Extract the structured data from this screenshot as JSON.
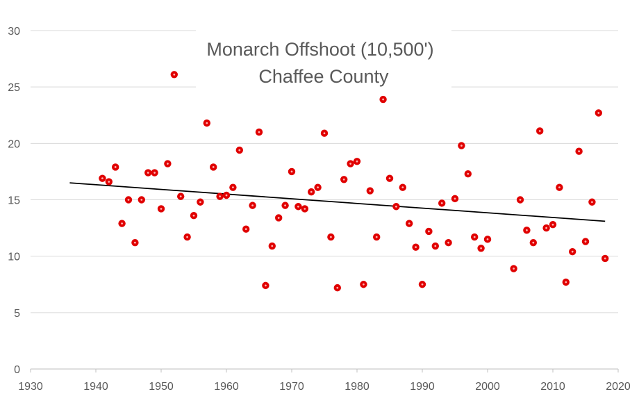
{
  "chart_data": {
    "type": "scatter",
    "title_lines": [
      "Monarch Offshoot (10,500')",
      "Chaffee County"
    ],
    "xlabel": "",
    "ylabel": "",
    "xlim": [
      1930,
      2020
    ],
    "ylim": [
      0,
      30
    ],
    "xticks": [
      1930,
      1940,
      1950,
      1960,
      1970,
      1980,
      1990,
      2000,
      2010,
      2020
    ],
    "yticks": [
      0,
      5,
      10,
      15,
      20,
      25,
      30
    ],
    "grid": "horizontal",
    "legend": "none",
    "point_color": "#e00000",
    "point_center_color": "#ffb0b0",
    "trend_color": "#000000",
    "trendline": {
      "x": [
        1936,
        2018
      ],
      "y": [
        16.5,
        13.1
      ]
    },
    "points": [
      {
        "x": 1941,
        "y": 16.9
      },
      {
        "x": 1942,
        "y": 16.6
      },
      {
        "x": 1943,
        "y": 17.9
      },
      {
        "x": 1944,
        "y": 12.9
      },
      {
        "x": 1945,
        "y": 15.0
      },
      {
        "x": 1946,
        "y": 11.2
      },
      {
        "x": 1947,
        "y": 15.0
      },
      {
        "x": 1948,
        "y": 17.4
      },
      {
        "x": 1949,
        "y": 17.4
      },
      {
        "x": 1950,
        "y": 14.2
      },
      {
        "x": 1951,
        "y": 18.2
      },
      {
        "x": 1952,
        "y": 26.1
      },
      {
        "x": 1953,
        "y": 15.3
      },
      {
        "x": 1954,
        "y": 11.7
      },
      {
        "x": 1955,
        "y": 13.6
      },
      {
        "x": 1956,
        "y": 14.8
      },
      {
        "x": 1957,
        "y": 21.8
      },
      {
        "x": 1958,
        "y": 17.9
      },
      {
        "x": 1959,
        "y": 15.3
      },
      {
        "x": 1960,
        "y": 15.4
      },
      {
        "x": 1961,
        "y": 16.1
      },
      {
        "x": 1962,
        "y": 19.4
      },
      {
        "x": 1963,
        "y": 12.4
      },
      {
        "x": 1964,
        "y": 14.5
      },
      {
        "x": 1965,
        "y": 21.0
      },
      {
        "x": 1966,
        "y": 7.4
      },
      {
        "x": 1967,
        "y": 10.9
      },
      {
        "x": 1968,
        "y": 13.4
      },
      {
        "x": 1969,
        "y": 14.5
      },
      {
        "x": 1970,
        "y": 17.5
      },
      {
        "x": 1971,
        "y": 14.4
      },
      {
        "x": 1972,
        "y": 14.2
      },
      {
        "x": 1973,
        "y": 15.7
      },
      {
        "x": 1974,
        "y": 16.1
      },
      {
        "x": 1975,
        "y": 20.9
      },
      {
        "x": 1976,
        "y": 11.7
      },
      {
        "x": 1977,
        "y": 7.2
      },
      {
        "x": 1978,
        "y": 16.8
      },
      {
        "x": 1979,
        "y": 18.2
      },
      {
        "x": 1980,
        "y": 18.4
      },
      {
        "x": 1981,
        "y": 7.5
      },
      {
        "x": 1982,
        "y": 15.8
      },
      {
        "x": 1983,
        "y": 11.7
      },
      {
        "x": 1984,
        "y": 23.9
      },
      {
        "x": 1985,
        "y": 16.9
      },
      {
        "x": 1986,
        "y": 14.4
      },
      {
        "x": 1987,
        "y": 16.1
      },
      {
        "x": 1988,
        "y": 12.9
      },
      {
        "x": 1989,
        "y": 10.8
      },
      {
        "x": 1990,
        "y": 7.5
      },
      {
        "x": 1991,
        "y": 12.2
      },
      {
        "x": 1992,
        "y": 10.9
      },
      {
        "x": 1993,
        "y": 14.7
      },
      {
        "x": 1994,
        "y": 11.2
      },
      {
        "x": 1995,
        "y": 15.1
      },
      {
        "x": 1996,
        "y": 19.8
      },
      {
        "x": 1997,
        "y": 17.3
      },
      {
        "x": 1998,
        "y": 11.7
      },
      {
        "x": 1999,
        "y": 10.7
      },
      {
        "x": 2000,
        "y": 11.5
      },
      {
        "x": 2004,
        "y": 8.9
      },
      {
        "x": 2005,
        "y": 15.0
      },
      {
        "x": 2006,
        "y": 12.3
      },
      {
        "x": 2007,
        "y": 11.2
      },
      {
        "x": 2008,
        "y": 21.1
      },
      {
        "x": 2009,
        "y": 12.5
      },
      {
        "x": 2010,
        "y": 12.8
      },
      {
        "x": 2011,
        "y": 16.1
      },
      {
        "x": 2012,
        "y": 7.7
      },
      {
        "x": 2013,
        "y": 10.4
      },
      {
        "x": 2014,
        "y": 19.3
      },
      {
        "x": 2015,
        "y": 11.3
      },
      {
        "x": 2016,
        "y": 14.8
      },
      {
        "x": 2017,
        "y": 22.7
      },
      {
        "x": 2018,
        "y": 9.8
      }
    ]
  }
}
